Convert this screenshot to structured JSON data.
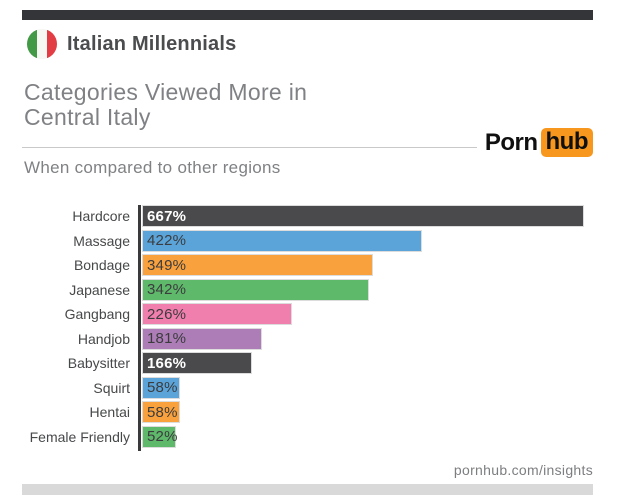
{
  "colors": {
    "top_bar": "#333538",
    "bottom_bar": "#d9d9d9",
    "flag_green": "#429a46",
    "flag_white": "#f7f7f4",
    "flag_red": "#e23c44",
    "logo_badge_orange": "#f7971d"
  },
  "header": {
    "title": "Italian Millennials"
  },
  "title_block": {
    "heading": "Categories Viewed More in\nCentral Italy",
    "subheading": "When compared to other regions"
  },
  "logo": {
    "part1": "Porn",
    "part2": "hub"
  },
  "footer": {
    "link": "pornhub.com/insights"
  },
  "chart_data": {
    "type": "bar",
    "orientation": "horizontal",
    "title": "Categories Viewed More in Central Italy",
    "subtitle": "When compared to other regions",
    "value_suffix": "%",
    "xlim": [
      0,
      667
    ],
    "grid": false,
    "legend": false,
    "categories": [
      "Hardcore",
      "Massage",
      "Bondage",
      "Japanese",
      "Gangbang",
      "Handjob",
      "Babysitter",
      "Squirt",
      "Hentai",
      "Female Friendly"
    ],
    "values": [
      667,
      422,
      349,
      342,
      226,
      181,
      166,
      58,
      58,
      52
    ],
    "labels": [
      "667%",
      "422%",
      "349%",
      "342%",
      "226%",
      "181%",
      "166%",
      "58%",
      "58%",
      "52%"
    ],
    "bar_colors": [
      "#4a4a4c",
      "#5ba4d9",
      "#f8a13d",
      "#5fb96b",
      "#f07fae",
      "#ac7db6",
      "#4a4a4c",
      "#5ba4d9",
      "#f8a13d",
      "#5fb96b"
    ],
    "label_colors": [
      "#ffffff",
      "#3c3c3e",
      "#3c3c3e",
      "#3c3c3e",
      "#3c3c3e",
      "#3c3c3e",
      "#ffffff",
      "#3c3c3e",
      "#3c3c3e",
      "#3c3c3e"
    ],
    "label_bold": [
      true,
      false,
      false,
      false,
      false,
      false,
      true,
      false,
      false,
      false
    ]
  }
}
